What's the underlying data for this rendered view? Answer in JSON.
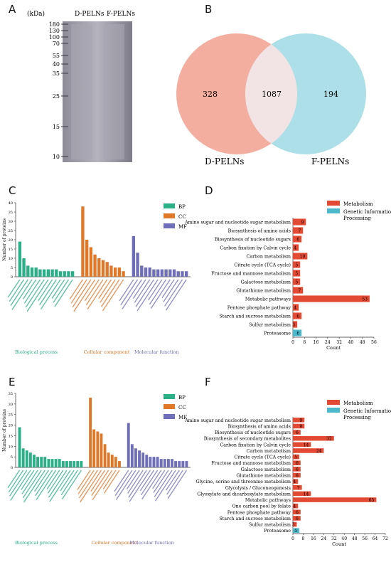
{
  "panel_letters": {
    "a": "A",
    "b": "B",
    "c": "C",
    "d": "D",
    "e": "E",
    "f": "F"
  },
  "gel": {
    "unit": "(kDa)",
    "lane1": "D-PELNs",
    "lane2": "F-PELNs",
    "markers": [
      "180",
      "130",
      "100",
      "70",
      "55",
      "40",
      "35",
      "25",
      "15",
      "10"
    ],
    "colors": {
      "background": "#8e8c98",
      "light": "#c4c2cc",
      "dark": "#5a5866"
    }
  },
  "venn": {
    "left_label": "D-PELNs",
    "right_label": "F-PELNs",
    "left_only": "328",
    "overlap": "1087",
    "right_only": "194",
    "colors": {
      "left": "#f3a596",
      "right": "#a3dce4",
      "overlap": "#f2e4e4"
    }
  },
  "chart_data": [
    {
      "type": "bar",
      "panel": "C",
      "ylabel": "Number of proteins",
      "ylim": [
        0,
        40
      ],
      "yticks": [
        "0",
        "5",
        "10",
        "15",
        "20",
        "25",
        "30",
        "35",
        "40"
      ],
      "legend": [
        "BP",
        "CC",
        "MF"
      ],
      "colors": {
        "BP": "#2aaf87",
        "CC": "#e0782a",
        "MF": "#6e6fb8"
      },
      "groups": [
        {
          "key": "BP",
          "caption": "Biological process",
          "values": [
            19,
            10,
            6,
            5,
            5,
            4,
            4,
            4,
            4,
            4,
            3,
            3,
            3,
            3
          ]
        },
        {
          "key": "CC",
          "caption": "Cellular component",
          "values": [
            38,
            20,
            16,
            12,
            10,
            9,
            8,
            6,
            5,
            5,
            3
          ]
        },
        {
          "key": "MF",
          "caption": "Molecular function",
          "values": [
            22,
            13,
            6,
            5,
            5,
            4,
            4,
            4,
            4,
            4,
            4,
            3,
            3,
            3
          ]
        }
      ]
    },
    {
      "type": "bar",
      "panel": "D",
      "orientation": "horizontal",
      "xlabel": "Count",
      "xlim": [
        0,
        56
      ],
      "xticks": [
        "0",
        "8",
        "16",
        "24",
        "32",
        "40",
        "48",
        "56"
      ],
      "legend": [
        "Metabolism",
        "Genetic Information Processing"
      ],
      "colors": {
        "Metabolism": "#e34a33",
        "Genetic Information Processing": "#4bb8cc"
      },
      "categories": [
        "Amino sugar and nucleotide sugar metabolism",
        "Biosynthesis of amino acids",
        "Biosynthesis of nucleotide sugars",
        "Carbon fixation by Calvin cycle",
        "Carbon metabolism",
        "Citrate cycle (TCA cycle)",
        "Fructose and mannose metabolism",
        "Galactose metabolism",
        "Glutathione metabolism",
        "Metabolic pathways",
        "Pentose phosphate pathway",
        "Starch and sucrose metabolism",
        "Sulfur metabolism",
        "Proteasome"
      ],
      "values": [
        9,
        7,
        6,
        4,
        10,
        5,
        5,
        5,
        7,
        53,
        4,
        6,
        3,
        6
      ],
      "series_of": [
        "Metabolism",
        "Metabolism",
        "Metabolism",
        "Metabolism",
        "Metabolism",
        "Metabolism",
        "Metabolism",
        "Metabolism",
        "Metabolism",
        "Metabolism",
        "Metabolism",
        "Metabolism",
        "Metabolism",
        "Genetic Information Processing"
      ]
    },
    {
      "type": "bar",
      "panel": "E",
      "ylabel": "Number of proteins",
      "ylim": [
        0,
        35
      ],
      "yticks": [
        "0",
        "5",
        "10",
        "15",
        "20",
        "25",
        "30",
        "35"
      ],
      "legend": [
        "BP",
        "CC",
        "MF"
      ],
      "colors": {
        "BP": "#2aaf87",
        "CC": "#e0782a",
        "MF": "#6e6fb8"
      },
      "groups": [
        {
          "key": "BP",
          "caption": "Biological process",
          "values": [
            19,
            9,
            8,
            7,
            6,
            5,
            5,
            5,
            4,
            4,
            4,
            4,
            3,
            3,
            3,
            3,
            3,
            3
          ]
        },
        {
          "key": "CC",
          "caption": "Cellular component",
          "values": [
            33,
            18,
            17,
            16,
            11,
            7,
            6,
            5,
            3
          ]
        },
        {
          "key": "MF",
          "caption": "Molecular function",
          "values": [
            21,
            11,
            9,
            8,
            7,
            6,
            5,
            5,
            5,
            4,
            4,
            4,
            4,
            3,
            3,
            3,
            3
          ]
        }
      ]
    },
    {
      "type": "bar",
      "panel": "F",
      "orientation": "horizontal",
      "xlabel": "Count",
      "xlim": [
        0,
        72
      ],
      "xticks": [
        "0",
        "8",
        "16",
        "24",
        "32",
        "40",
        "48",
        "56",
        "64",
        "72"
      ],
      "legend": [
        "Metabolism",
        "Genetic Information Processing"
      ],
      "colors": {
        "Metabolism": "#e34a33",
        "Genetic Information Processing": "#4bb8cc"
      },
      "categories": [
        "Amino sugar and nucleotide sugar metabolism",
        "Biosynthesis of amino acids",
        "Biosynthesis of nucleotide sugars",
        "Biosynthesis of secondary metabolites",
        "Carbon fixation by Calvin cycle",
        "Carbon metabolism",
        "Citrate cycle (TCA cycle)",
        "Fructose and mannose metabolism",
        "Galactose metabolism",
        "Glutathione metabolism",
        "Glycine, serine and threonine metabolism",
        "Glycolysis / Gluconeogenesis",
        "Glyoxylate and dicarboxylate metabolism",
        "Metabolic pathways",
        "One carbon pool by folate",
        "Pentose phosphate pathway",
        "Starch and sucrose metabolism",
        "Sulfur metabolism",
        "Proteasome"
      ],
      "values": [
        9,
        9,
        6,
        32,
        14,
        24,
        5,
        6,
        6,
        6,
        4,
        7,
        14,
        65,
        4,
        6,
        6,
        3,
        5
      ],
      "series_of": [
        "Metabolism",
        "Metabolism",
        "Metabolism",
        "Metabolism",
        "Metabolism",
        "Metabolism",
        "Metabolism",
        "Metabolism",
        "Metabolism",
        "Metabolism",
        "Metabolism",
        "Metabolism",
        "Metabolism",
        "Metabolism",
        "Metabolism",
        "Metabolism",
        "Metabolism",
        "Metabolism",
        "Genetic Information Processing"
      ]
    }
  ]
}
